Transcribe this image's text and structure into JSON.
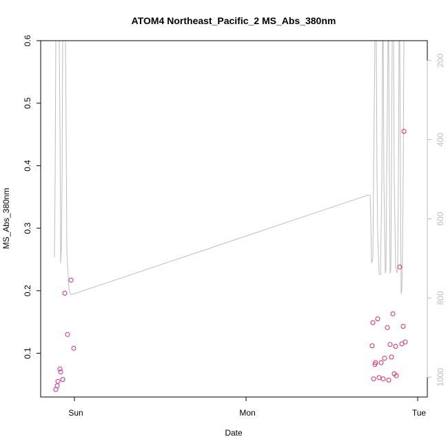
{
  "chart_data": {
    "type": "scatter",
    "title": "ATOM4 Northeast_Pacific_2 MS_Abs_380nm",
    "xlabel": "Date",
    "ylabel": "MS_Abs_380nm",
    "x_ticks": [
      "Sun",
      "Mon",
      "Tue"
    ],
    "x_range_days": [
      -0.11,
      2.04
    ],
    "ylim": [
      0.03,
      0.6
    ],
    "y_ticks": [
      "0.1",
      "0.2",
      "0.3",
      "0.4",
      "0.5",
      "0.6"
    ],
    "y2_ticks": [
      "200",
      "400",
      "600",
      "800",
      "1000"
    ],
    "y2lim": [
      1050,
      150
    ],
    "y2_reversed": true,
    "grid": false,
    "colors": {
      "points_early": "#e0219a",
      "points_late": "#e8206a",
      "line": "#bdbdbd",
      "right_axis": "#bdbdbd"
    },
    "series": [
      {
        "kind": "points",
        "x_days": [
          -0.1084,
          -0.1004,
          -0.0964,
          -0.0843,
          -0.0803,
          -0.0683,
          -0.0562,
          -0.0402,
          -0.0201,
          -0.004,
          1.7349,
          1.739,
          1.743,
          1.751,
          1.755,
          1.7671,
          1.7751,
          1.7871,
          1.7992,
          1.8072,
          1.8233,
          1.8313,
          1.8394,
          1.8474,
          1.8554,
          1.8635,
          1.8715,
          1.8755,
          1.8956,
          1.9076,
          1.9157,
          1.9197,
          1.9277
        ],
        "y": [
          0.042,
          0.048,
          0.055,
          0.075,
          0.07,
          0.058,
          0.196,
          0.13,
          0.217,
          0.108,
          0.112,
          0.149,
          0.059,
          0.082,
          0.085,
          0.155,
          0.061,
          0.085,
          0.059,
          0.092,
          0.141,
          0.057,
          0.114,
          0.094,
          0.163,
          0.067,
          0.111,
          0.064,
          0.238,
          0.115,
          0.143,
          0.455,
          0.118
        ]
      },
      {
        "kind": "line",
        "axis": "right",
        "x_days": [
          -0.1165,
          -0.1125,
          -0.1084,
          -0.1004,
          -0.0964,
          -0.0924,
          -0.0884,
          -0.0843,
          -0.0803,
          -0.0763,
          -0.0723,
          -0.0683,
          -0.0643,
          -0.0602,
          -0.0562,
          -0.0522,
          -0.0482,
          -0.0442,
          -0.0402,
          -0.0321,
          -0.0241,
          -0.0161,
          -0.008,
          0.0,
          1.7108,
          1.7229,
          1.7269,
          1.7309,
          1.739,
          1.743,
          1.751,
          1.755,
          1.759,
          1.7631,
          1.7671,
          1.7751,
          1.7831,
          1.7912,
          1.7952,
          1.7992,
          1.8032,
          1.8112,
          1.8153,
          1.8193,
          1.8273,
          1.8313,
          1.8353,
          1.8394,
          1.8434,
          1.8474,
          1.8514,
          1.8554,
          1.8594,
          1.8635,
          1.8715,
          1.8795,
          1.8835,
          1.8876,
          1.8916,
          1.8956,
          1.8996,
          1.9036,
          1.9076,
          1.9116,
          1.9157,
          1.9197,
          1.9237,
          1.9277,
          1.9317
        ],
        "y": [
          697,
          500,
          150,
          150,
          150,
          150,
          150,
          360,
          712,
          672,
          500,
          150,
          150,
          150,
          150,
          150,
          380,
          680,
          720,
          774,
          790,
          791,
          790,
          789,
          540,
          541,
          600,
          711,
          701,
          500,
          150,
          150,
          150,
          500,
          641,
          738,
          741,
          500,
          150,
          150,
          500,
          737,
          728,
          500,
          150,
          150,
          500,
          738,
          728,
          500,
          150,
          150,
          150,
          500,
          720,
          737,
          728,
          500,
          150,
          150,
          500,
          790,
          780,
          700,
          500,
          150,
          150,
          150,
          150
        ]
      }
    ]
  }
}
